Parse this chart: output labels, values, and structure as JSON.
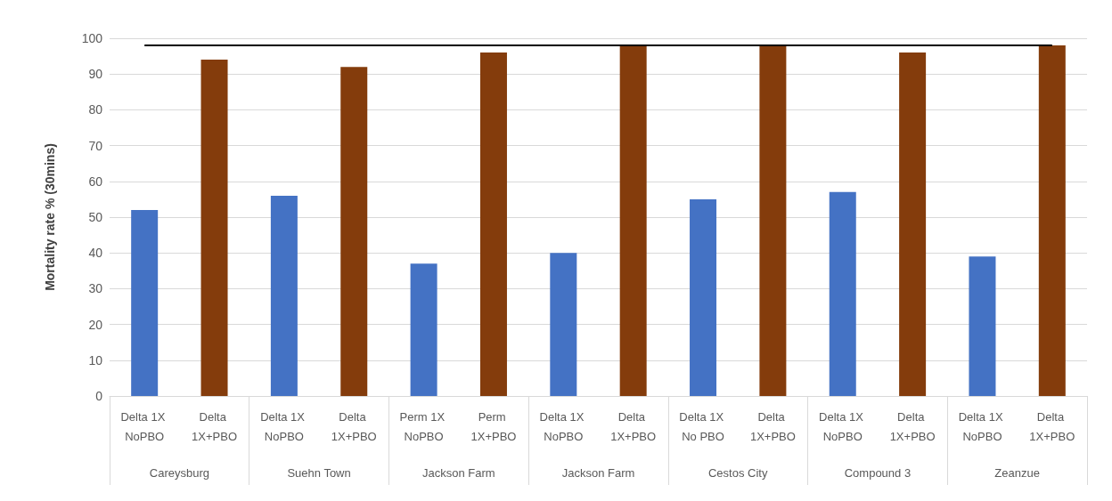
{
  "chart_data": {
    "type": "bar",
    "ylabel": "Mortality rate % (30mins)",
    "categories": [
      "Delta 1X NoPBO",
      "Delta 1X+PBO",
      "Delta 1X NoPBO",
      "Delta 1X+PBO",
      "Perm 1X NoPBO",
      "Perm 1X+PBO",
      "Delta 1X NoPBO",
      "Delta 1X+PBO",
      "Delta 1X No PBO",
      "Delta 1X+PBO",
      "Delta 1X NoPBO",
      "Delta 1X+PBO",
      "Delta 1X NoPBO",
      "Delta 1X+PBO"
    ],
    "values": [
      52,
      94,
      56,
      92,
      37,
      96,
      40,
      98,
      55,
      98,
      57,
      96,
      39,
      98
    ],
    "colors": [
      "#4472c4",
      "#843c0c",
      "#4472c4",
      "#843c0c",
      "#4472c4",
      "#843c0c",
      "#4472c4",
      "#843c0c",
      "#4472c4",
      "#843c0c",
      "#4472c4",
      "#843c0c",
      "#4472c4",
      "#843c0c"
    ],
    "annotations": [
      "Careysburg",
      "Suehn Town",
      "Jackson Farm",
      "Jackson Farm",
      "Cestos City",
      "Compound 3",
      "Zeanzue"
    ],
    "ylim": [
      0,
      100
    ],
    "yticks": [
      0,
      10,
      20,
      30,
      40,
      50,
      60,
      70,
      80,
      90,
      100
    ],
    "ref_lines": [
      {
        "axis": "y",
        "value": 98,
        "color": "#000000"
      }
    ],
    "grid": "y"
  }
}
